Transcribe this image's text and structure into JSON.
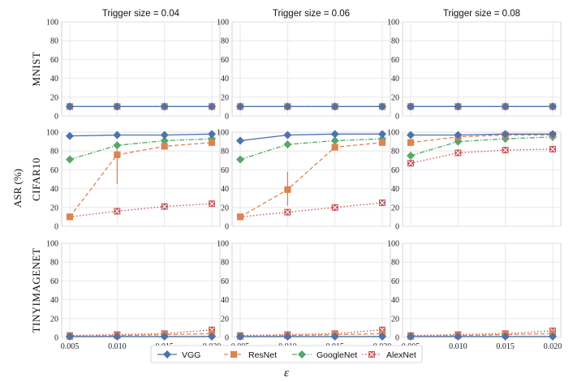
{
  "chart_data": {
    "type": "line",
    "ylabel": "ASR (%)",
    "xlabel": "ε",
    "ylim": [
      0,
      100
    ],
    "yticks": [
      "0",
      "20",
      "40",
      "60",
      "80",
      "100"
    ],
    "x": [
      0.005,
      0.01,
      0.015,
      0.02
    ],
    "xtick_labels": [
      "0.005",
      "0.010",
      "0.015",
      "0.020"
    ],
    "grid": true,
    "legend_position": "bottom-center",
    "columns": [
      {
        "title": "Trigger size = 0.04"
      },
      {
        "title": "Trigger size = 0.06"
      },
      {
        "title": "Trigger size = 0.08"
      }
    ],
    "rows": [
      {
        "label": "MNIST"
      },
      {
        "label": "CIFAR10"
      },
      {
        "label": "TINYIMAGENET"
      }
    ],
    "series_styles": [
      {
        "name": "VGG",
        "color": "#4c72b0",
        "marker": "diamond",
        "dash": "solid"
      },
      {
        "name": "ResNet",
        "color": "#dd8452",
        "marker": "square",
        "dash": "dashed"
      },
      {
        "name": "GoogleNet",
        "color": "#55a868",
        "marker": "diamond",
        "dash": "dashdot"
      },
      {
        "name": "AlexNet",
        "color": "#c44e52",
        "marker": "x",
        "dash": "dotted"
      }
    ],
    "panels": [
      {
        "row": 0,
        "col": 0,
        "series": [
          {
            "name": "VGG",
            "values": [
              10,
              10,
              10,
              10
            ]
          },
          {
            "name": "ResNet",
            "values": [
              10,
              10,
              10,
              10
            ]
          },
          {
            "name": "GoogleNet",
            "values": [
              10,
              10,
              10,
              10
            ]
          },
          {
            "name": "AlexNet",
            "values": [
              10,
              10,
              10,
              10
            ]
          }
        ]
      },
      {
        "row": 0,
        "col": 1,
        "series": [
          {
            "name": "VGG",
            "values": [
              10,
              10,
              10,
              10
            ]
          },
          {
            "name": "ResNet",
            "values": [
              10,
              10,
              10,
              10
            ]
          },
          {
            "name": "GoogleNet",
            "values": [
              10,
              10,
              10,
              10
            ]
          },
          {
            "name": "AlexNet",
            "values": [
              10,
              10,
              10,
              10
            ]
          }
        ]
      },
      {
        "row": 0,
        "col": 2,
        "series": [
          {
            "name": "VGG",
            "values": [
              10,
              10,
              10,
              10
            ]
          },
          {
            "name": "ResNet",
            "values": [
              10,
              10,
              10,
              10
            ]
          },
          {
            "name": "GoogleNet",
            "values": [
              10,
              10,
              10,
              10
            ]
          },
          {
            "name": "AlexNet",
            "values": [
              10,
              10,
              10,
              10
            ]
          }
        ]
      },
      {
        "row": 1,
        "col": 0,
        "series": [
          {
            "name": "VGG",
            "values": [
              96,
              97,
              97,
              98
            ]
          },
          {
            "name": "ResNet",
            "values": [
              10,
              76,
              85,
              89
            ],
            "error_low": [
              null,
              45,
              null,
              null
            ],
            "error_high": [
              null,
              83,
              null,
              null
            ]
          },
          {
            "name": "GoogleNet",
            "values": [
              71,
              86,
              91,
              93
            ]
          },
          {
            "name": "AlexNet",
            "values": [
              10,
              16,
              21,
              24
            ]
          }
        ]
      },
      {
        "row": 1,
        "col": 1,
        "series": [
          {
            "name": "VGG",
            "values": [
              91,
              97,
              98,
              98
            ]
          },
          {
            "name": "ResNet",
            "values": [
              10,
              39,
              84,
              89
            ],
            "error_low": [
              null,
              22,
              null,
              null
            ],
            "error_high": [
              null,
              58,
              null,
              null
            ]
          },
          {
            "name": "GoogleNet",
            "values": [
              71,
              87,
              91,
              93
            ]
          },
          {
            "name": "AlexNet",
            "values": [
              10,
              15,
              20,
              25
            ]
          }
        ]
      },
      {
        "row": 1,
        "col": 2,
        "series": [
          {
            "name": "VGG",
            "values": [
              97,
              97,
              98,
              98
            ]
          },
          {
            "name": "ResNet",
            "values": [
              89,
              95,
              97,
              97
            ]
          },
          {
            "name": "GoogleNet",
            "values": [
              75,
              90,
              93,
              95
            ]
          },
          {
            "name": "AlexNet",
            "values": [
              67,
              78,
              81,
              82
            ]
          }
        ]
      },
      {
        "row": 2,
        "col": 0,
        "series": [
          {
            "name": "VGG",
            "values": [
              1,
              1,
              1,
              1
            ]
          },
          {
            "name": "ResNet",
            "values": [
              1,
              2,
              3,
              4
            ]
          },
          {
            "name": "GoogleNet",
            "values": [
              1,
              1,
              1,
              1
            ]
          },
          {
            "name": "AlexNet",
            "values": [
              2,
              3,
              4,
              8
            ]
          }
        ]
      },
      {
        "row": 2,
        "col": 1,
        "series": [
          {
            "name": "VGG",
            "values": [
              1,
              1,
              1,
              1
            ]
          },
          {
            "name": "ResNet",
            "values": [
              1,
              2,
              3,
              4
            ]
          },
          {
            "name": "GoogleNet",
            "values": [
              1,
              1,
              1,
              1
            ]
          },
          {
            "name": "AlexNet",
            "values": [
              2,
              3,
              4,
              8
            ]
          }
        ]
      },
      {
        "row": 2,
        "col": 2,
        "series": [
          {
            "name": "VGG",
            "values": [
              1,
              1,
              1,
              1
            ]
          },
          {
            "name": "ResNet",
            "values": [
              1,
              2,
              3,
              4
            ]
          },
          {
            "name": "GoogleNet",
            "values": [
              1,
              1,
              1,
              1
            ]
          },
          {
            "name": "AlexNet",
            "values": [
              2,
              3,
              4,
              7
            ]
          }
        ]
      }
    ]
  }
}
